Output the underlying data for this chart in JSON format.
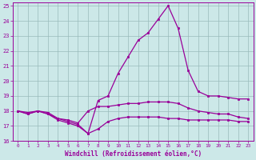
{
  "xlabel": "Windchill (Refroidissement éolien,°C)",
  "background_color": "#cce8e8",
  "line_color": "#990099",
  "grid_color": "#99bbbb",
  "xlim": [
    -0.5,
    23.5
  ],
  "ylim": [
    16,
    25.2
  ],
  "yticks": [
    16,
    17,
    18,
    19,
    20,
    21,
    22,
    23,
    24,
    25
  ],
  "xticks": [
    0,
    1,
    2,
    3,
    4,
    5,
    6,
    7,
    8,
    9,
    10,
    11,
    12,
    13,
    14,
    15,
    16,
    17,
    18,
    19,
    20,
    21,
    22,
    23
  ],
  "line1_x": [
    0,
    1,
    2,
    3,
    4,
    5,
    6,
    7,
    8,
    9,
    10,
    11,
    12,
    13,
    14,
    15,
    16,
    17,
    18,
    19,
    20,
    21,
    22,
    23
  ],
  "line1_y": [
    18.0,
    17.8,
    18.0,
    17.8,
    17.5,
    17.3,
    17.1,
    16.5,
    18.7,
    19.0,
    20.5,
    21.6,
    22.7,
    23.2,
    24.1,
    25.0,
    23.5,
    20.7,
    19.3,
    19.0,
    19.0,
    18.9,
    18.8,
    18.8
  ],
  "line2_x": [
    0,
    1,
    2,
    3,
    4,
    5,
    6,
    7,
    8,
    9,
    10,
    11,
    12,
    13,
    14,
    15,
    16,
    17,
    18,
    19,
    20,
    21,
    22,
    23
  ],
  "line2_y": [
    18.0,
    17.9,
    18.0,
    17.9,
    17.5,
    17.4,
    17.2,
    18.0,
    18.3,
    18.3,
    18.4,
    18.5,
    18.5,
    18.6,
    18.6,
    18.6,
    18.5,
    18.2,
    18.0,
    17.9,
    17.8,
    17.8,
    17.6,
    17.5
  ],
  "line3_x": [
    0,
    1,
    2,
    3,
    4,
    5,
    6,
    7,
    8,
    9,
    10,
    11,
    12,
    13,
    14,
    15,
    16,
    17,
    18,
    19,
    20,
    21,
    22,
    23
  ],
  "line3_y": [
    18.0,
    17.8,
    18.0,
    17.8,
    17.4,
    17.2,
    17.0,
    16.5,
    16.8,
    17.3,
    17.5,
    17.6,
    17.6,
    17.6,
    17.6,
    17.5,
    17.5,
    17.4,
    17.4,
    17.4,
    17.4,
    17.4,
    17.3,
    17.3
  ]
}
